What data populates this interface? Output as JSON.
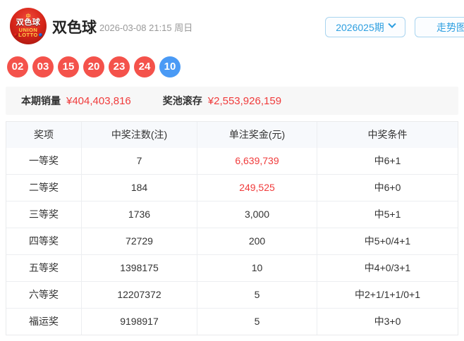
{
  "header": {
    "logo": {
      "top": "中",
      "name": "双色球",
      "line2": "UNION",
      "line3": "LOTTO"
    },
    "title": "双色球",
    "datetime": "2026-03-08 21:15 周日",
    "period_button_label": "2026025期",
    "trend_button_label": "走势图"
  },
  "balls": [
    {
      "number": "02",
      "type": "red"
    },
    {
      "number": "03",
      "type": "red"
    },
    {
      "number": "15",
      "type": "red"
    },
    {
      "number": "20",
      "type": "red"
    },
    {
      "number": "23",
      "type": "red"
    },
    {
      "number": "24",
      "type": "red"
    },
    {
      "number": "10",
      "type": "blue"
    }
  ],
  "sales": {
    "sales_label": "本期销量",
    "sales_value": "¥404,403,816",
    "pool_label": "奖池滚存",
    "pool_value": "¥2,553,926,159"
  },
  "table": {
    "headers": [
      "奖项",
      "中奖注数(注)",
      "单注奖金(元)",
      "中奖条件"
    ],
    "rows": [
      {
        "prize": "一等奖",
        "count": "7",
        "amount": "6,639,739",
        "amount_red": true,
        "condition": "中6+1"
      },
      {
        "prize": "二等奖",
        "count": "184",
        "amount": "249,525",
        "amount_red": true,
        "condition": "中6+0"
      },
      {
        "prize": "三等奖",
        "count": "1736",
        "amount": "3,000",
        "amount_red": false,
        "condition": "中5+1"
      },
      {
        "prize": "四等奖",
        "count": "72729",
        "amount": "200",
        "amount_red": false,
        "condition": "中5+0/4+1"
      },
      {
        "prize": "五等奖",
        "count": "1398175",
        "amount": "10",
        "amount_red": false,
        "condition": "中4+0/3+1"
      },
      {
        "prize": "六等奖",
        "count": "12207372",
        "amount": "5",
        "amount_red": false,
        "condition": "中2+1/1+1/0+1"
      },
      {
        "prize": "福运奖",
        "count": "9198917",
        "amount": "5",
        "amount_red": false,
        "condition": "中3+0"
      }
    ]
  },
  "colors": {
    "red_ball": "#f4524b",
    "blue_ball": "#4a9af5",
    "amount_red": "#f03b3b",
    "accent_blue": "#2e9fe0",
    "button_border": "#a9d4ef",
    "strip_bg": "#f7f7f7",
    "table_header_bg": "#f7f9fc"
  }
}
